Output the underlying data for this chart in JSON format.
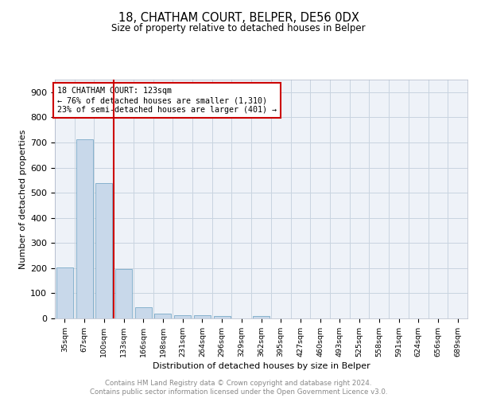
{
  "title": "18, CHATHAM COURT, BELPER, DE56 0DX",
  "subtitle": "Size of property relative to detached houses in Belper",
  "xlabel": "Distribution of detached houses by size in Belper",
  "ylabel": "Number of detached properties",
  "bar_labels": [
    "35sqm",
    "67sqm",
    "100sqm",
    "133sqm",
    "166sqm",
    "198sqm",
    "231sqm",
    "264sqm",
    "296sqm",
    "329sqm",
    "362sqm",
    "395sqm",
    "427sqm",
    "460sqm",
    "493sqm",
    "525sqm",
    "558sqm",
    "591sqm",
    "624sqm",
    "656sqm",
    "689sqm"
  ],
  "bar_values": [
    203,
    714,
    537,
    196,
    44,
    20,
    14,
    13,
    8,
    0,
    8,
    0,
    0,
    0,
    0,
    0,
    0,
    0,
    0,
    0,
    0
  ],
  "bar_color": "#c8d8ea",
  "bar_edge_color": "#7aaac8",
  "grid_color": "#c8d4e0",
  "background_color": "#eef2f8",
  "vline_color": "#cc0000",
  "annotation_text": "18 CHATHAM COURT: 123sqm\n← 76% of detached houses are smaller (1,310)\n23% of semi-detached houses are larger (401) →",
  "annotation_box_color": "#cc0000",
  "footer_text": "Contains HM Land Registry data © Crown copyright and database right 2024.\nContains public sector information licensed under the Open Government Licence v3.0.",
  "ylim": [
    0,
    950
  ],
  "yticks": [
    0,
    100,
    200,
    300,
    400,
    500,
    600,
    700,
    800,
    900
  ],
  "title_fontsize": 10.5,
  "subtitle_fontsize": 8.5
}
